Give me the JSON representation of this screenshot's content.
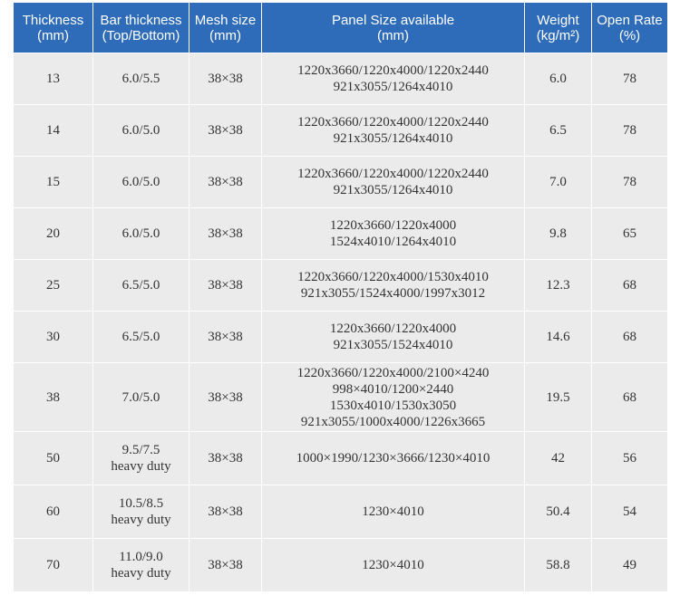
{
  "table": {
    "headers": [
      [
        "Thickness",
        "(mm)"
      ],
      [
        "Bar thickness",
        "(Top/Bottom)"
      ],
      [
        "Mesh size",
        "(mm)"
      ],
      [
        "Panel Size available",
        "(mm)"
      ],
      [
        "Weight",
        "(kg/m²)"
      ],
      [
        "Open Rate",
        "(%)"
      ]
    ],
    "rows": [
      {
        "thickness": "13",
        "bar": [
          "6.0/5.5"
        ],
        "mesh": "38×38",
        "panel": [
          "1220x3660/1220x4000/1220x2440",
          "921x3055/1264x4010"
        ],
        "weight": "6.0",
        "open_rate": "78"
      },
      {
        "thickness": "14",
        "bar": [
          "6.0/5.0"
        ],
        "mesh": "38×38",
        "panel": [
          "1220x3660/1220x4000/1220x2440",
          "921x3055/1264x4010"
        ],
        "weight": "6.5",
        "open_rate": "78"
      },
      {
        "thickness": "15",
        "bar": [
          "6.0/5.0"
        ],
        "mesh": "38×38",
        "panel": [
          "1220x3660/1220x4000/1220x2440",
          "921x3055/1264x4010"
        ],
        "weight": "7.0",
        "open_rate": "78"
      },
      {
        "thickness": "20",
        "bar": [
          "6.0/5.0"
        ],
        "mesh": "38×38",
        "panel": [
          "1220x3660/1220x4000",
          "1524x4010/1264x4010"
        ],
        "weight": "9.8",
        "open_rate": "65"
      },
      {
        "thickness": "25",
        "bar": [
          "6.5/5.0"
        ],
        "mesh": "38×38",
        "panel": [
          "1220x3660/1220x4000/1530x4010",
          "921x3055/1524x4000/1997x3012"
        ],
        "weight": "12.3",
        "open_rate": "68"
      },
      {
        "thickness": "30",
        "bar": [
          "6.5/5.0"
        ],
        "mesh": "38×38",
        "panel": [
          "1220x3660/1220x4000",
          "921x3055/1524x4010"
        ],
        "weight": "14.6",
        "open_rate": "68"
      },
      {
        "thickness": "38",
        "bar": [
          "7.0/5.0"
        ],
        "mesh": "38×38",
        "panel": [
          "1220x3660/1220x4000/2100×4240",
          "998×4010/1200×2440",
          "1530x4010/1530x3050",
          "921x3055/1000x4000/1226x3665"
        ],
        "weight": "19.5",
        "open_rate": "68"
      },
      {
        "thickness": "50",
        "bar": [
          "9.5/7.5",
          "heavy duty"
        ],
        "mesh": "38×38",
        "panel": [
          "1000×1990/1230×3666/1230×4010"
        ],
        "weight": "42",
        "open_rate": "56"
      },
      {
        "thickness": "60",
        "bar": [
          "10.5/8.5",
          "heavy duty"
        ],
        "mesh": "38×38",
        "panel": [
          "1230×4010"
        ],
        "weight": "50.4",
        "open_rate": "54"
      },
      {
        "thickness": "70",
        "bar": [
          "11.0/9.0",
          "heavy duty"
        ],
        "mesh": "38×38",
        "panel": [
          "1230×4010"
        ],
        "weight": "58.8",
        "open_rate": "49"
      }
    ]
  }
}
